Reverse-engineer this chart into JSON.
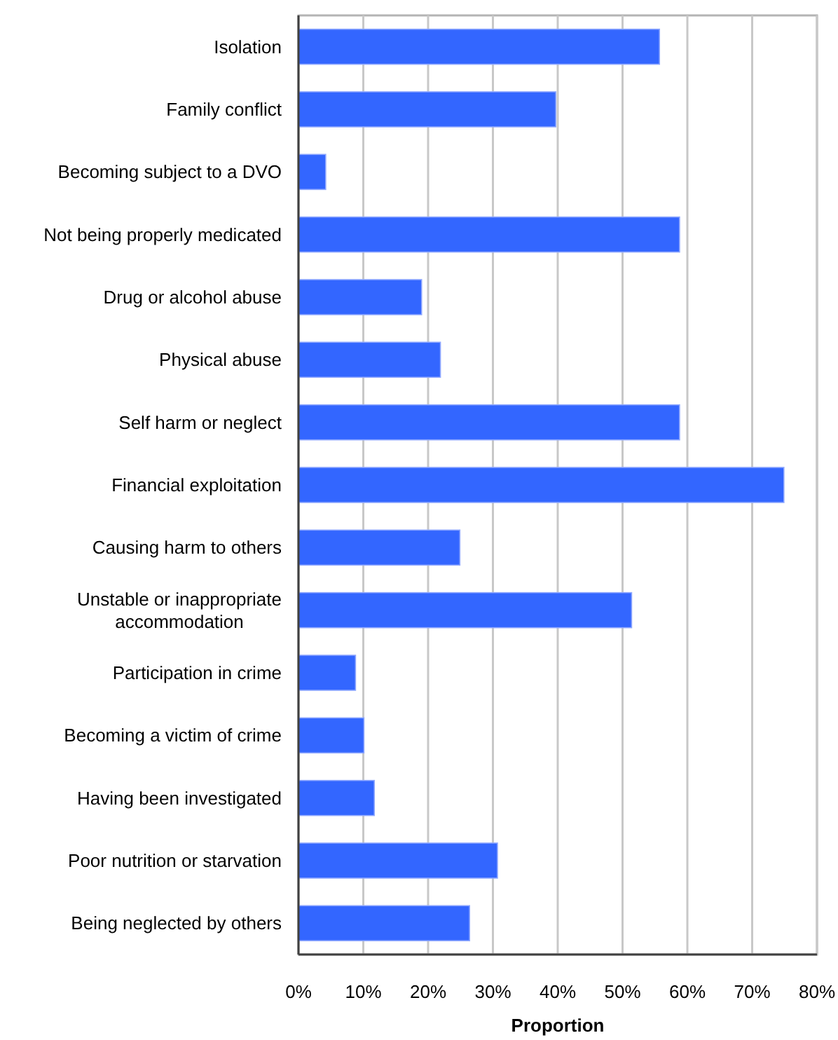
{
  "chart_data": {
    "type": "bar",
    "orientation": "horizontal",
    "categories": [
      "Isolation",
      "Family conflict",
      "Becoming subject to a DVO",
      "Not being properly medicated",
      "Drug or alcohol abuse",
      "Physical abuse",
      "Self harm or neglect",
      "Financial exploitation",
      "Causing harm to others",
      "Unstable or inappropriate accommodation",
      "Participation in crime",
      "Becoming a victim of crime",
      "Having been investigated",
      "Poor nutrition or starvation",
      "Being neglected by others"
    ],
    "values": [
      55.7,
      39.7,
      4.2,
      58.8,
      19.0,
      21.9,
      58.8,
      74.9,
      24.9,
      51.4,
      8.8,
      10.1,
      11.7,
      30.7,
      26.4
    ],
    "color": "#3366ff",
    "xlabel": "Proportion",
    "xlim": [
      0,
      80
    ],
    "xticks": [
      {
        "value": 0,
        "label": "0%"
      },
      {
        "value": 10,
        "label": "10%"
      },
      {
        "value": 20,
        "label": "20%"
      },
      {
        "value": 30,
        "label": "30%"
      },
      {
        "value": 40,
        "label": "40%"
      },
      {
        "value": 50,
        "label": "50%"
      },
      {
        "value": 60,
        "label": "60%"
      },
      {
        "value": 70,
        "label": "70%"
      },
      {
        "value": 80,
        "label": "80%"
      }
    ],
    "grid": "x"
  }
}
